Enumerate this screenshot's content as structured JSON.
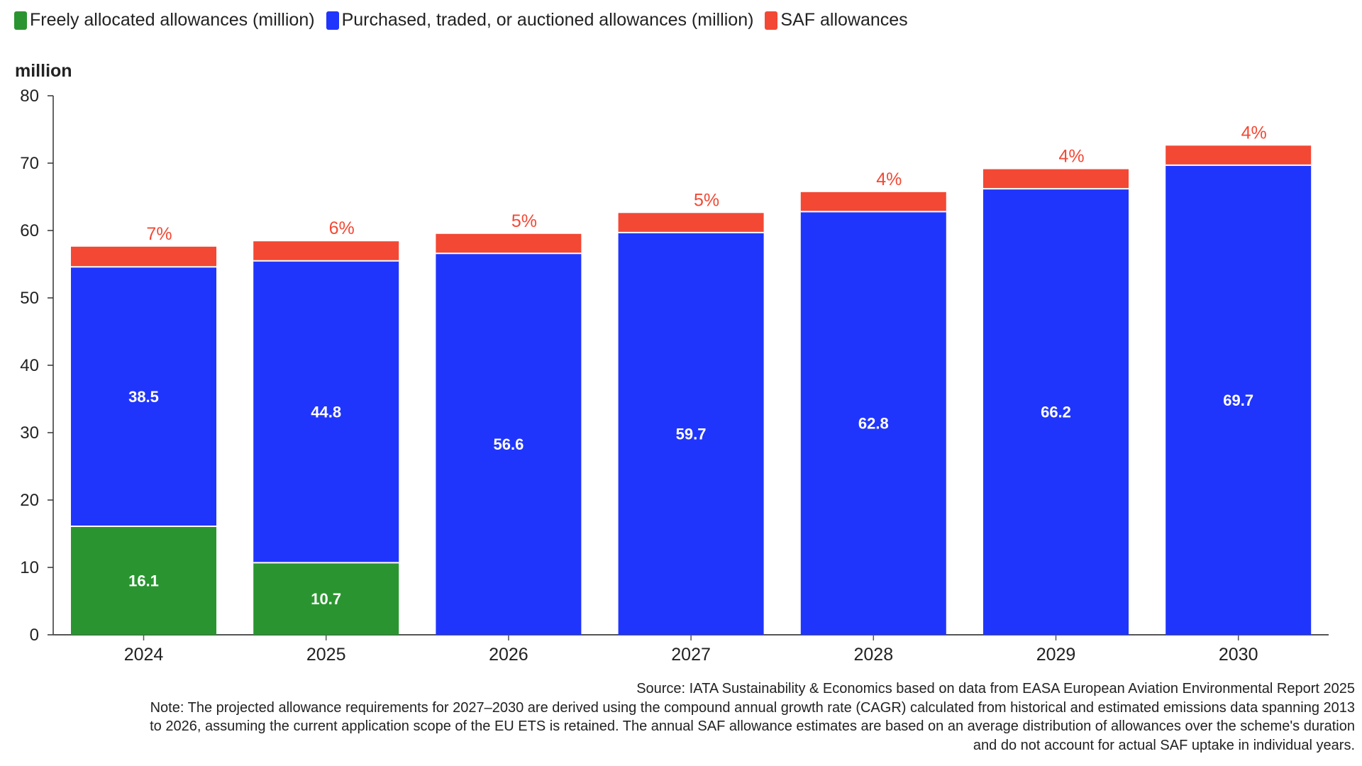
{
  "chart_data": {
    "type": "bar",
    "stacked": true,
    "ylabel": "million",
    "ylim": [
      0,
      80
    ],
    "yticks": [
      0,
      10,
      20,
      30,
      40,
      50,
      60,
      70,
      80
    ],
    "grid": false,
    "legend_position": "top-left",
    "categories": [
      "2024",
      "2025",
      "2026",
      "2027",
      "2028",
      "2029",
      "2030"
    ],
    "series": [
      {
        "name": "Freely allocated allowances (million)",
        "color": "#2a9530",
        "values": [
          16.1,
          10.7,
          0,
          0,
          0,
          0,
          0
        ],
        "labels": [
          "16.1",
          "10.7",
          "",
          "",
          "",
          "",
          ""
        ]
      },
      {
        "name": "Purchased, traded, or auctioned allowances (million)",
        "color": "#2035fb",
        "values": [
          38.5,
          44.8,
          56.6,
          59.7,
          62.8,
          66.2,
          69.7
        ],
        "labels": [
          "38.5",
          "44.8",
          "56.6",
          "59.7",
          "62.8",
          "66.2",
          "69.7"
        ]
      },
      {
        "name": "SAF allowances",
        "color": "#f34834",
        "values": [
          3.0,
          2.9,
          2.9,
          2.9,
          2.9,
          2.9,
          2.9
        ],
        "labels": [
          "7%",
          "6%",
          "5%",
          "5%",
          "4%",
          "4%",
          "4%"
        ]
      }
    ]
  },
  "notes": {
    "source": "Source: IATA Sustainability & Economics based on data from EASA European Aviation Environmental Report 2025",
    "note_lines": [
      "Note: The projected allowance requirements for 2027–2030 are derived using the compound annual growth rate (CAGR) calculated from historical and estimated emissions data spanning 2013",
      "to 2026, assuming the current application scope of the EU ETS is retained. The annual SAF allowance estimates are based on an average distribution of allowances over the scheme's duration",
      "and do not account for actual SAF uptake in individual years."
    ]
  }
}
